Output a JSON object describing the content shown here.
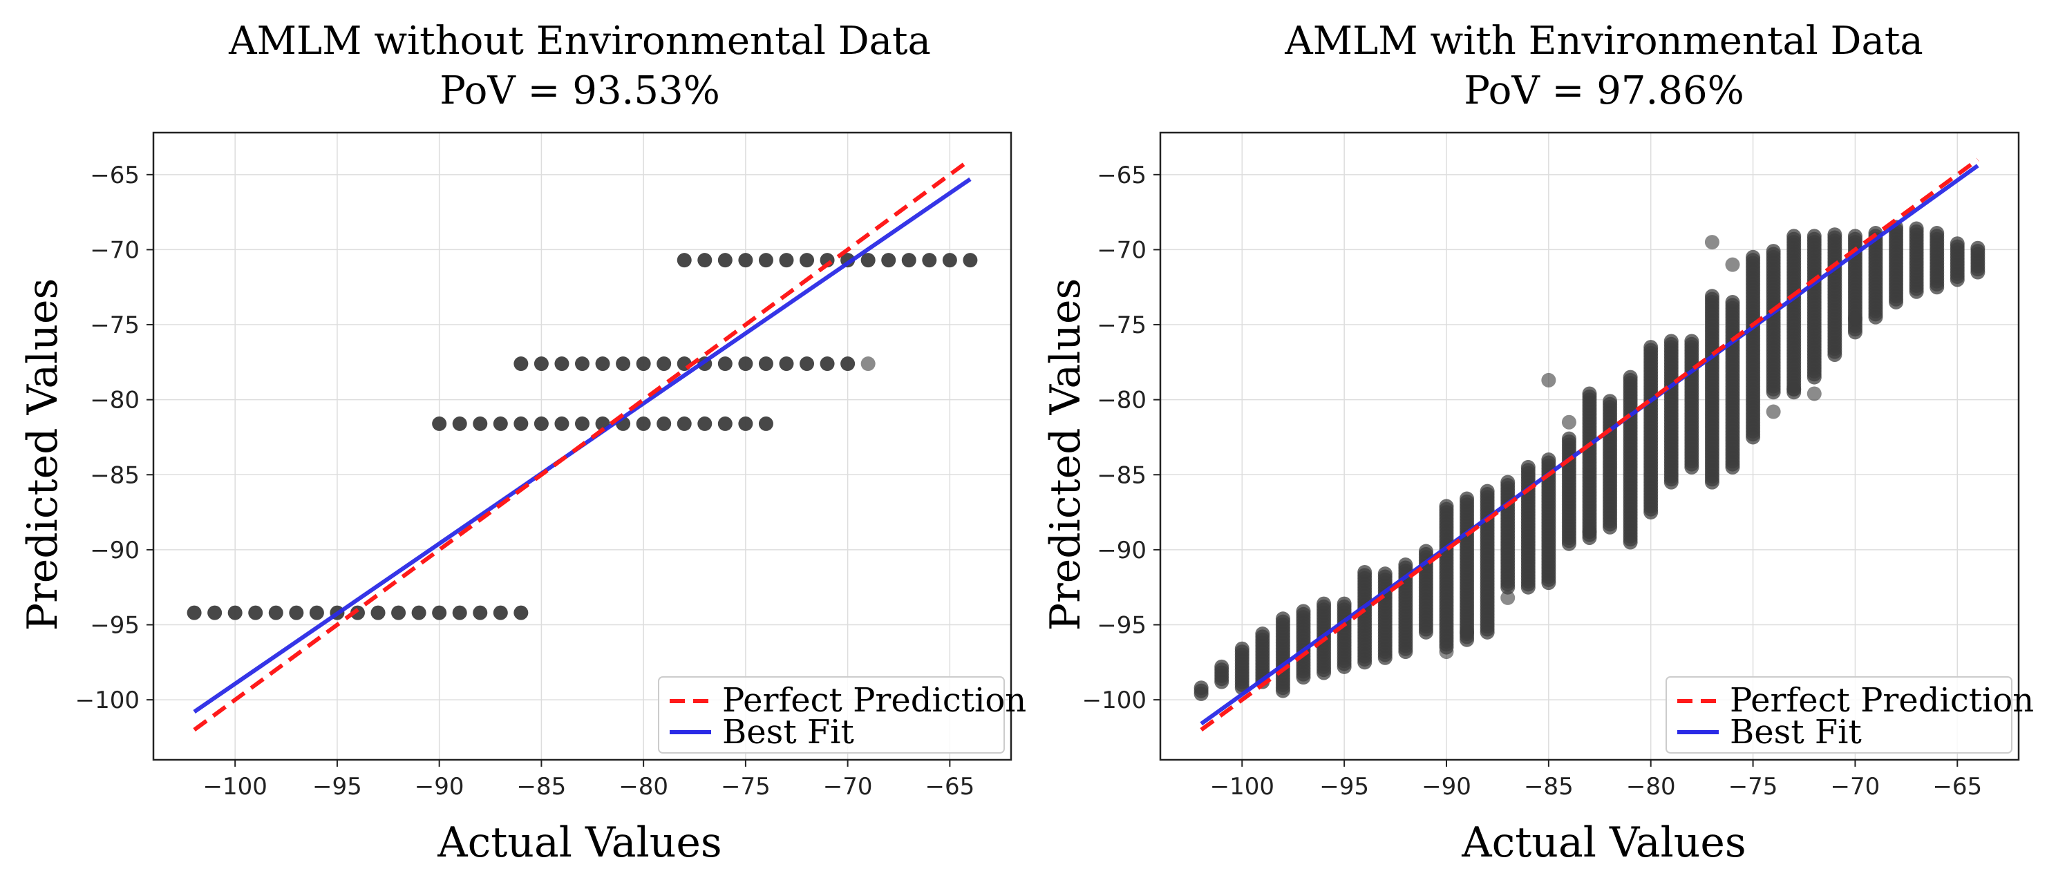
{
  "colors": {
    "point": "#3d3d3d",
    "perfect": "#ff1a1a",
    "best_fit": "#2a2ae6",
    "grid": "#dddddd",
    "frame": "#222222"
  },
  "chart_data": [
    {
      "type": "scatter",
      "title": "AMLM without Environmental Data",
      "subtitle": "PoV = 93.53%",
      "xlabel": "Actual Values",
      "ylabel": "Predicted Values",
      "xlim": [
        -104,
        -62
      ],
      "ylim": [
        -104,
        -62.2
      ],
      "xticks": [
        -100,
        -95,
        -90,
        -85,
        -80,
        -75,
        -70,
        -65
      ],
      "yticks": [
        -65,
        -70,
        -75,
        -80,
        -85,
        -90,
        -95,
        -100
      ],
      "xtick_labels": [
        "−100",
        "−95",
        "−90",
        "−85",
        "−80",
        "−75",
        "−70",
        "−65"
      ],
      "ytick_labels": [
        "−65",
        "−70",
        "−75",
        "−80",
        "−85",
        "−90",
        "−95",
        "−100"
      ],
      "grid": true,
      "legend_position": "lower-right",
      "legend": [
        "Perfect Prediction",
        "Best Fit"
      ],
      "series": [
        {
          "type": "scatter",
          "groups": [
            {
              "y": -94.2,
              "x_from": -102,
              "x_to": -86
            },
            {
              "y": -81.6,
              "x_from": -90,
              "x_to": -74
            },
            {
              "y": -77.6,
              "x_from": -86,
              "x_to": -70
            },
            {
              "y": -70.7,
              "x_from": -78,
              "x_to": -64
            }
          ],
          "extra_points": [
            {
              "x": -69,
              "y": -77.6
            }
          ]
        },
        {
          "name": "Perfect Prediction",
          "type": "line",
          "style": "dashed",
          "x": [
            -102,
            -64
          ],
          "y": [
            -102,
            -64
          ]
        },
        {
          "name": "Best Fit",
          "type": "line",
          "style": "solid",
          "x": [
            -102,
            -64
          ],
          "y": [
            -100.8,
            -65.3
          ]
        }
      ]
    },
    {
      "type": "scatter",
      "title": "AMLM with Environmental Data",
      "subtitle": "PoV = 97.86%",
      "xlabel": "Actual Values",
      "ylabel": "Predicted Values",
      "xlim": [
        -104,
        -62
      ],
      "ylim": [
        -104,
        -62.2
      ],
      "xticks": [
        -100,
        -95,
        -90,
        -85,
        -80,
        -75,
        -70,
        -65
      ],
      "yticks": [
        -65,
        -70,
        -75,
        -80,
        -85,
        -90,
        -95,
        -100
      ],
      "xtick_labels": [
        "−100",
        "−95",
        "−90",
        "−85",
        "−80",
        "−75",
        "−70",
        "−65"
      ],
      "ytick_labels": [
        "−65",
        "−70",
        "−75",
        "−80",
        "−85",
        "−90",
        "−95",
        "−100"
      ],
      "grid": true,
      "legend_position": "lower-right",
      "legend": [
        "Perfect Prediction",
        "Best Fit"
      ],
      "series": [
        {
          "type": "scatter",
          "columns": [
            {
              "x": -102,
              "y_min": -99.6,
              "y_max": -99.2
            },
            {
              "x": -101,
              "y_min": -98.8,
              "y_max": -97.8
            },
            {
              "x": -100,
              "y_min": -99.2,
              "y_max": -96.5
            },
            {
              "x": -99,
              "y_min": -98.8,
              "y_max": -95.5
            },
            {
              "x": -98,
              "y_min": -99.4,
              "y_max": -94.5
            },
            {
              "x": -97,
              "y_min": -98.5,
              "y_max": -94
            },
            {
              "x": -96,
              "y_min": -98.2,
              "y_max": -93.5
            },
            {
              "x": -95,
              "y_min": -97.8,
              "y_max": -93.5
            },
            {
              "x": -94,
              "y_min": -97.5,
              "y_max": -91.5
            },
            {
              "x": -93,
              "y_min": -97.2,
              "y_max": -91.5
            },
            {
              "x": -92,
              "y_min": -96.8,
              "y_max": -91
            },
            {
              "x": -91,
              "y_min": -95.5,
              "y_max": -90
            },
            {
              "x": -90,
              "y_min": -96.5,
              "y_max": -87
            },
            {
              "x": -89,
              "y_min": -96,
              "y_max": -86.5
            },
            {
              "x": -88,
              "y_min": -95.5,
              "y_max": -86
            },
            {
              "x": -87,
              "y_min": -92.5,
              "y_max": -85.5
            },
            {
              "x": -86,
              "y_min": -92.5,
              "y_max": -84.5
            },
            {
              "x": -85,
              "y_min": -92.2,
              "y_max": -84
            },
            {
              "x": -84,
              "y_min": -89.6,
              "y_max": -82.5
            },
            {
              "x": -83,
              "y_min": -89.2,
              "y_max": -79.5
            },
            {
              "x": -82,
              "y_min": -88.5,
              "y_max": -80
            },
            {
              "x": -81,
              "y_min": -89.5,
              "y_max": -78.5
            },
            {
              "x": -80,
              "y_min": -87.5,
              "y_max": -76.5
            },
            {
              "x": -79,
              "y_min": -85.5,
              "y_max": -76
            },
            {
              "x": -78,
              "y_min": -84.5,
              "y_max": -76
            },
            {
              "x": -77,
              "y_min": -85.5,
              "y_max": -73
            },
            {
              "x": -76,
              "y_min": -84.5,
              "y_max": -73.5
            },
            {
              "x": -75,
              "y_min": -82.5,
              "y_max": -70.5
            },
            {
              "x": -74,
              "y_min": -79.5,
              "y_max": -70
            },
            {
              "x": -73,
              "y_min": -79.5,
              "y_max": -69
            },
            {
              "x": -72,
              "y_min": -78.5,
              "y_max": -69
            },
            {
              "x": -71,
              "y_min": -77,
              "y_max": -69
            },
            {
              "x": -70,
              "y_min": -75.5,
              "y_max": -69
            },
            {
              "x": -69,
              "y_min": -74.5,
              "y_max": -68.8
            },
            {
              "x": -68,
              "y_min": -73.5,
              "y_max": -68.5
            },
            {
              "x": -67,
              "y_min": -72.8,
              "y_max": -68.5
            },
            {
              "x": -66,
              "y_min": -72.5,
              "y_max": -68.8
            },
            {
              "x": -65,
              "y_min": -72,
              "y_max": -69.5
            },
            {
              "x": -64,
              "y_min": -71.5,
              "y_max": -69.8
            }
          ],
          "outliers": [
            {
              "x": -85,
              "y": -78.7
            },
            {
              "x": -84,
              "y": -81.5
            },
            {
              "x": -83,
              "y": -88.8
            },
            {
              "x": -77,
              "y": -69.5
            },
            {
              "x": -76,
              "y": -71
            },
            {
              "x": -74,
              "y": -80.8
            },
            {
              "x": -73,
              "y": -79.3
            },
            {
              "x": -72,
              "y": -79.6
            },
            {
              "x": -70,
              "y": -74.6
            },
            {
              "x": -89,
              "y": -95.5
            },
            {
              "x": -90,
              "y": -96.8
            },
            {
              "x": -87,
              "y": -93.2
            }
          ]
        },
        {
          "name": "Perfect Prediction",
          "type": "line",
          "style": "dashed",
          "x": [
            -102,
            -64
          ],
          "y": [
            -102,
            -64
          ]
        },
        {
          "name": "Best Fit",
          "type": "line",
          "style": "solid",
          "x": [
            -102,
            -64
          ],
          "y": [
            -101.6,
            -64.4
          ]
        }
      ]
    }
  ]
}
